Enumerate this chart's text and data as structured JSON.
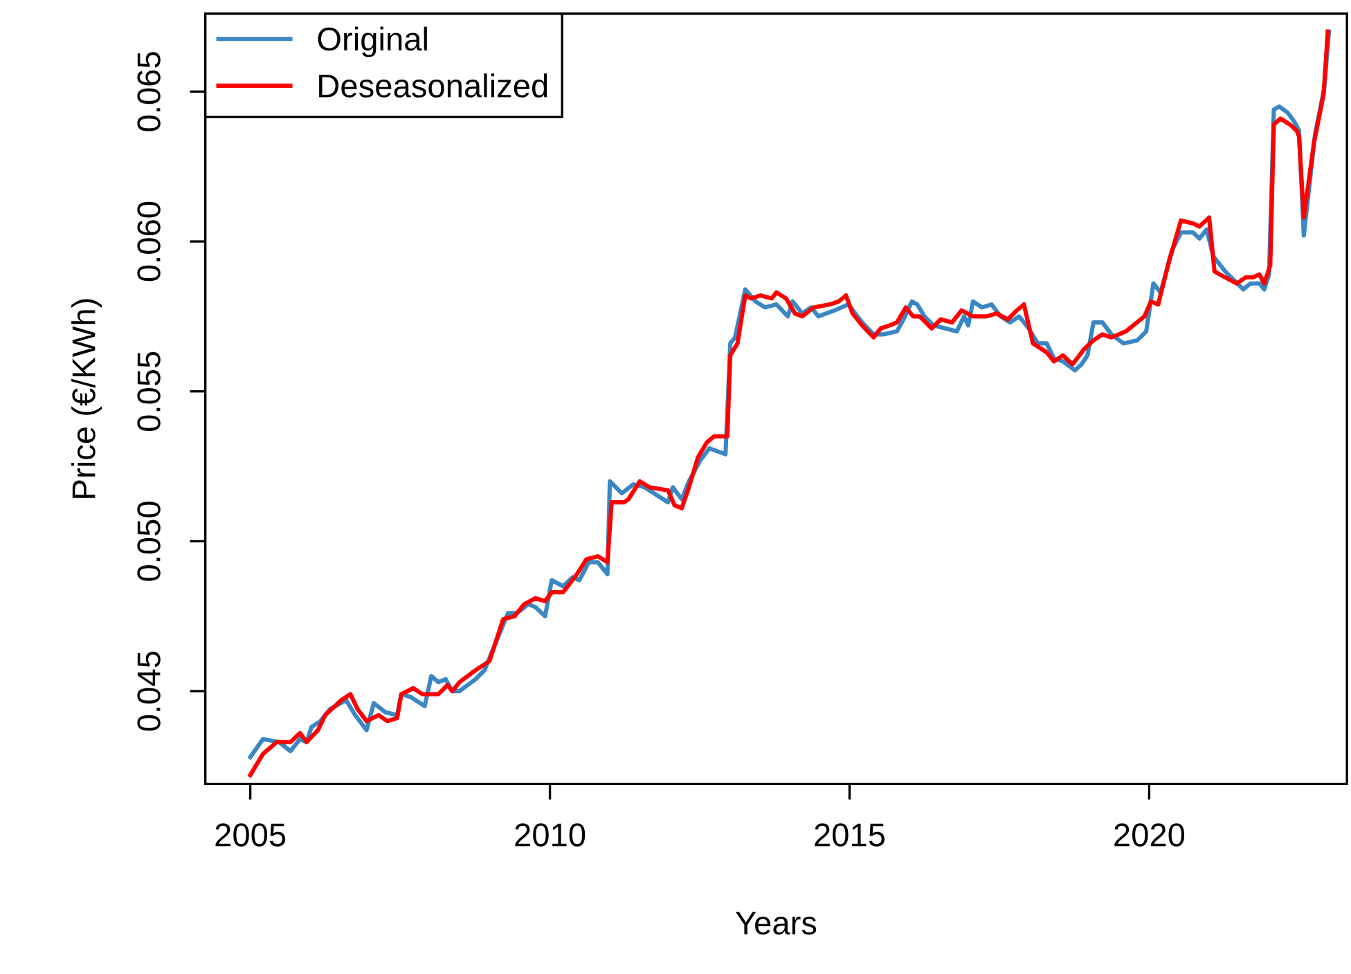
{
  "chart_data": {
    "type": "line",
    "xlabel": "Years",
    "ylabel": "Price (€/KWh)",
    "xlim": [
      2004.25,
      2023.3
    ],
    "ylim": [
      0.0419,
      0.0676
    ],
    "xticks": [
      2005,
      2010,
      2015,
      2020
    ],
    "yticks": [
      0.045,
      {
        "value": 0.05,
        "label": "0.050"
      },
      0.055,
      {
        "value": 0.06,
        "label": "0.060"
      },
      0.065
    ],
    "grid": false,
    "legend": "top left",
    "marker": "none",
    "line_style": "solid",
    "series": [
      {
        "name": "Original",
        "color": "#3a87c4",
        "x": [
          2005.0,
          2005.21,
          2005.48,
          2005.67,
          2005.83,
          2005.94,
          2006.02,
          2006.17,
          2006.33,
          2006.6,
          2006.75,
          2006.94,
          2007.06,
          2007.25,
          2007.45,
          2007.52,
          2007.68,
          2007.91,
          2008.02,
          2008.14,
          2008.26,
          2008.37,
          2008.49,
          2008.76,
          2008.91,
          2009.03,
          2009.3,
          2009.45,
          2009.64,
          2009.76,
          2009.92,
          2010.03,
          2010.22,
          2010.38,
          2010.49,
          2010.65,
          2010.8,
          2010.96,
          2011.0,
          2011.2,
          2011.39,
          2011.58,
          2011.97,
          2012.05,
          2012.2,
          2012.32,
          2012.51,
          2012.66,
          2012.93,
          2013.01,
          2013.09,
          2013.26,
          2013.43,
          2013.59,
          2013.78,
          2013.97,
          2014.05,
          2014.21,
          2014.36,
          2014.48,
          2014.75,
          2014.98,
          2015.21,
          2015.4,
          2015.56,
          2015.79,
          2015.9,
          2016.04,
          2016.13,
          2016.25,
          2016.4,
          2016.6,
          2016.79,
          2016.91,
          2016.98,
          2017.06,
          2017.21,
          2017.37,
          2017.52,
          2017.68,
          2017.83,
          2017.99,
          2018.14,
          2018.29,
          2018.41,
          2018.56,
          2018.76,
          2018.87,
          2018.97,
          2019.07,
          2019.22,
          2019.37,
          2019.57,
          2019.8,
          2019.95,
          2020.07,
          2020.19,
          2020.38,
          2020.53,
          2020.73,
          2020.84,
          2020.96,
          2021.07,
          2021.27,
          2021.42,
          2021.57,
          2021.69,
          2021.84,
          2021.92,
          2022.0,
          2022.08,
          2022.17,
          2022.31,
          2022.42,
          2022.5,
          2022.58,
          2022.77,
          2022.92,
          2023.0
        ],
        "values": [
          0.0428,
          0.0434,
          0.0433,
          0.043,
          0.0434,
          0.0433,
          0.0438,
          0.044,
          0.0444,
          0.0447,
          0.0442,
          0.0437,
          0.0446,
          0.0443,
          0.0442,
          0.0449,
          0.0448,
          0.0445,
          0.0455,
          0.0453,
          0.0454,
          0.045,
          0.045,
          0.0454,
          0.0457,
          0.0463,
          0.0476,
          0.0476,
          0.0479,
          0.0478,
          0.0475,
          0.0487,
          0.0485,
          0.0488,
          0.0487,
          0.0493,
          0.0493,
          0.0489,
          0.052,
          0.0516,
          0.0519,
          0.0518,
          0.0513,
          0.0518,
          0.0514,
          0.052,
          0.0527,
          0.0531,
          0.0529,
          0.0566,
          0.0568,
          0.0584,
          0.058,
          0.0578,
          0.0579,
          0.0575,
          0.058,
          0.0576,
          0.0578,
          0.0575,
          0.0577,
          0.0579,
          0.0573,
          0.0569,
          0.0569,
          0.057,
          0.0574,
          0.058,
          0.0579,
          0.0575,
          0.0572,
          0.0571,
          0.057,
          0.0575,
          0.0572,
          0.058,
          0.0578,
          0.0579,
          0.0575,
          0.0573,
          0.0575,
          0.0571,
          0.0566,
          0.0566,
          0.0561,
          0.056,
          0.0557,
          0.0559,
          0.0562,
          0.0573,
          0.0573,
          0.0569,
          0.0566,
          0.0567,
          0.057,
          0.0586,
          0.0583,
          0.0597,
          0.0603,
          0.0603,
          0.0601,
          0.0604,
          0.0595,
          0.059,
          0.0587,
          0.0584,
          0.0586,
          0.0586,
          0.0584,
          0.0589,
          0.0644,
          0.0645,
          0.0643,
          0.064,
          0.0637,
          0.0602,
          0.0636,
          0.0651,
          0.067
        ]
      },
      {
        "name": "Deseasonalized",
        "color": "#ff0000",
        "x": [
          2005.0,
          2005.21,
          2005.44,
          2005.67,
          2005.83,
          2005.94,
          2006.13,
          2006.25,
          2006.52,
          2006.67,
          2006.79,
          2006.94,
          2007.14,
          2007.29,
          2007.45,
          2007.52,
          2007.72,
          2007.87,
          2008.14,
          2008.29,
          2008.37,
          2008.49,
          2008.76,
          2008.99,
          2009.22,
          2009.41,
          2009.57,
          2009.76,
          2009.92,
          2010.03,
          2010.22,
          2010.45,
          2010.61,
          2010.8,
          2010.96,
          2011.03,
          2011.24,
          2011.31,
          2011.5,
          2011.66,
          2011.97,
          2012.08,
          2012.2,
          2012.32,
          2012.47,
          2012.62,
          2012.74,
          2012.96,
          2013.01,
          2013.13,
          2013.26,
          2013.36,
          2013.51,
          2013.7,
          2013.78,
          2013.94,
          2014.09,
          2014.21,
          2014.4,
          2014.67,
          2014.82,
          2014.94,
          2015.05,
          2015.21,
          2015.4,
          2015.52,
          2015.67,
          2015.79,
          2015.94,
          2016.06,
          2016.17,
          2016.37,
          2016.52,
          2016.71,
          2016.87,
          2017.06,
          2017.29,
          2017.45,
          2017.64,
          2017.79,
          2017.91,
          2018.06,
          2018.29,
          2018.41,
          2018.56,
          2018.72,
          2018.91,
          2019.07,
          2019.22,
          2019.37,
          2019.61,
          2019.92,
          2020.03,
          2020.15,
          2020.34,
          2020.53,
          2020.73,
          2020.84,
          2021.0,
          2021.09,
          2021.27,
          2021.46,
          2021.61,
          2021.73,
          2021.84,
          2021.92,
          2022.02,
          2022.08,
          2022.19,
          2022.35,
          2022.46,
          2022.5,
          2022.58,
          2022.75,
          2022.91,
          2022.98
        ],
        "values": [
          0.0422,
          0.0429,
          0.0433,
          0.0433,
          0.0436,
          0.0433,
          0.0437,
          0.0442,
          0.0447,
          0.0449,
          0.0444,
          0.044,
          0.0442,
          0.044,
          0.0441,
          0.0449,
          0.0451,
          0.0449,
          0.0449,
          0.0452,
          0.045,
          0.0453,
          0.0457,
          0.046,
          0.0474,
          0.0475,
          0.0479,
          0.0481,
          0.048,
          0.0483,
          0.0483,
          0.0489,
          0.0494,
          0.0495,
          0.0493,
          0.0513,
          0.0513,
          0.0514,
          0.052,
          0.0518,
          0.0517,
          0.0512,
          0.0511,
          0.0518,
          0.0528,
          0.0533,
          0.0535,
          0.0535,
          0.0562,
          0.0566,
          0.0582,
          0.0581,
          0.0582,
          0.0581,
          0.0583,
          0.0581,
          0.0576,
          0.0575,
          0.0578,
          0.0579,
          0.058,
          0.0582,
          0.0576,
          0.0572,
          0.0568,
          0.0571,
          0.0572,
          0.0573,
          0.0578,
          0.0575,
          0.0575,
          0.0571,
          0.0574,
          0.0573,
          0.0577,
          0.0575,
          0.0575,
          0.0576,
          0.0574,
          0.0577,
          0.0579,
          0.0566,
          0.0563,
          0.056,
          0.0562,
          0.0559,
          0.0564,
          0.0567,
          0.0569,
          0.0568,
          0.057,
          0.0575,
          0.058,
          0.0579,
          0.0594,
          0.0607,
          0.0606,
          0.0605,
          0.0608,
          0.059,
          0.0588,
          0.0586,
          0.0588,
          0.0588,
          0.0589,
          0.0586,
          0.0592,
          0.0639,
          0.0641,
          0.0639,
          0.0637,
          0.0635,
          0.0608,
          0.0633,
          0.0649,
          0.067
        ]
      }
    ]
  }
}
